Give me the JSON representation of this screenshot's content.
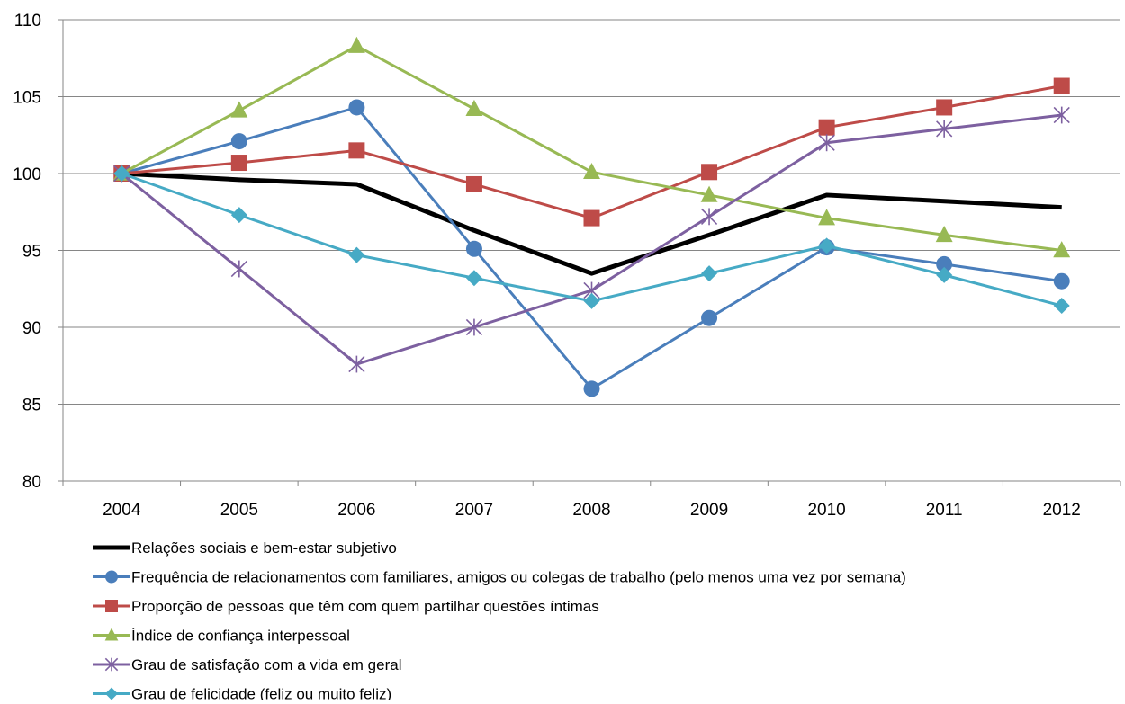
{
  "chart_data": {
    "type": "line",
    "title": "",
    "xlabel": "",
    "ylabel": "",
    "x": [
      "2004",
      "2005",
      "2006",
      "2007",
      "2008",
      "2009",
      "2010",
      "2011",
      "2012"
    ],
    "ylim": [
      80,
      110
    ],
    "yticks": [
      "80",
      "85",
      "90",
      "95",
      "100",
      "105",
      "110"
    ],
    "grid": "horizontal",
    "legend_position": "bottom",
    "series": [
      {
        "name": "Relações sociais e bem-estar subjetivo",
        "values": [
          100,
          99.6,
          99.3,
          96.3,
          93.5,
          96.0,
          98.6,
          98.2,
          97.8
        ],
        "color": "#000000",
        "marker": "none",
        "show_markers_at": [
          false,
          false,
          false,
          false,
          false,
          false,
          false,
          false,
          false
        ]
      },
      {
        "name": "Frequência de relacionamentos com familiares, amigos ou colegas de trabalho (pelo menos uma vez por semana)",
        "values": [
          100,
          102.1,
          104.3,
          95.1,
          86.0,
          90.6,
          95.2,
          94.1,
          93.0
        ],
        "color": "#4a7ebb",
        "marker": "circle"
      },
      {
        "name": "Proporção de pessoas que têm com quem partilhar questões íntimas",
        "values": [
          100,
          100.7,
          101.5,
          99.3,
          97.1,
          100.1,
          103.0,
          104.3,
          105.7
        ],
        "color": "#be4b48",
        "marker": "square"
      },
      {
        "name": "Índice de confiança interpessoal",
        "values": [
          100,
          104.1,
          108.3,
          104.2,
          100.1,
          98.6,
          97.1,
          96.0,
          95.0
        ],
        "color": "#98b954",
        "marker": "triangle"
      },
      {
        "name": "Grau de satisfação com a vida em geral",
        "values": [
          100,
          93.8,
          87.6,
          90.0,
          92.4,
          97.2,
          102.0,
          102.9,
          103.8
        ],
        "color": "#7d60a0",
        "marker": "star"
      },
      {
        "name": "Grau de felicidade (feliz ou muito feliz)",
        "values": [
          100,
          97.3,
          94.7,
          93.2,
          91.7,
          93.5,
          95.3,
          93.4,
          91.4
        ],
        "color": "#46aac5",
        "marker": "diamond"
      }
    ]
  }
}
